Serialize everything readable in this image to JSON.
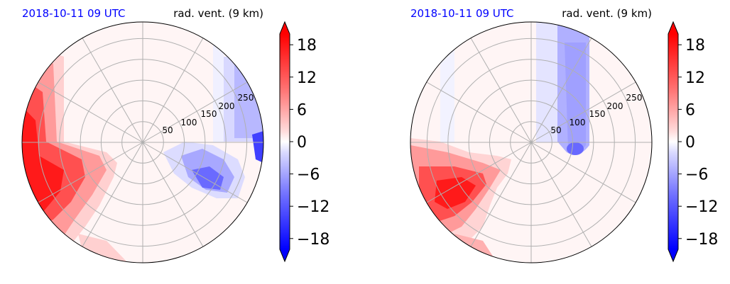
{
  "colors": {
    "negative_strong": "#0000ff",
    "neutral": "#ffffff",
    "positive_strong": "#ff0000",
    "grid": "#b0b0b0",
    "title_time": "#0000ff"
  },
  "chart_data": [
    {
      "type": "polar-contour",
      "title_left": "2018-10-11 09 UTC",
      "title_right": "rad. vent. (9 km)",
      "r_ticks": [
        50,
        100,
        150,
        200,
        250
      ],
      "r_max": 290,
      "theta_grid_deg": [
        0,
        30,
        60,
        90,
        120,
        150,
        180,
        210,
        240,
        270,
        300,
        330
      ],
      "grid": true,
      "colorbar": {
        "ticks": [
          "18",
          "12",
          "6",
          "0",
          "−6",
          "−12",
          "−18"
        ],
        "tick_values": [
          18,
          12,
          6,
          0,
          -6,
          -12,
          -18
        ],
        "range": [
          -20,
          20
        ],
        "extend": "both"
      },
      "fields": [
        {
          "region": "west-southwest",
          "sign": "positive",
          "max_value": 20
        },
        {
          "region": "east-southeast",
          "sign": "negative",
          "min_value": -14
        },
        {
          "region": "northeast-edge",
          "sign": "negative",
          "min_value": -6
        }
      ]
    },
    {
      "type": "polar-contour",
      "title_left": "2018-10-11 09 UTC",
      "title_right": "rad. vent. (9 km)",
      "r_ticks": [
        50,
        100,
        150,
        200,
        250
      ],
      "r_max": 290,
      "theta_grid_deg": [
        0,
        30,
        60,
        90,
        120,
        150,
        180,
        210,
        240,
        270,
        300,
        330
      ],
      "grid": true,
      "colorbar": {
        "ticks": [
          "18",
          "12",
          "6",
          "0",
          "−6",
          "−12",
          "−18"
        ],
        "tick_values": [
          18,
          12,
          6,
          0,
          -6,
          -12,
          -18
        ],
        "range": [
          -20,
          20
        ],
        "extend": "both"
      },
      "fields": [
        {
          "region": "southwest",
          "sign": "positive",
          "max_value": 20
        },
        {
          "region": "north-northeast-band",
          "sign": "negative",
          "min_value": -8
        }
      ]
    }
  ]
}
